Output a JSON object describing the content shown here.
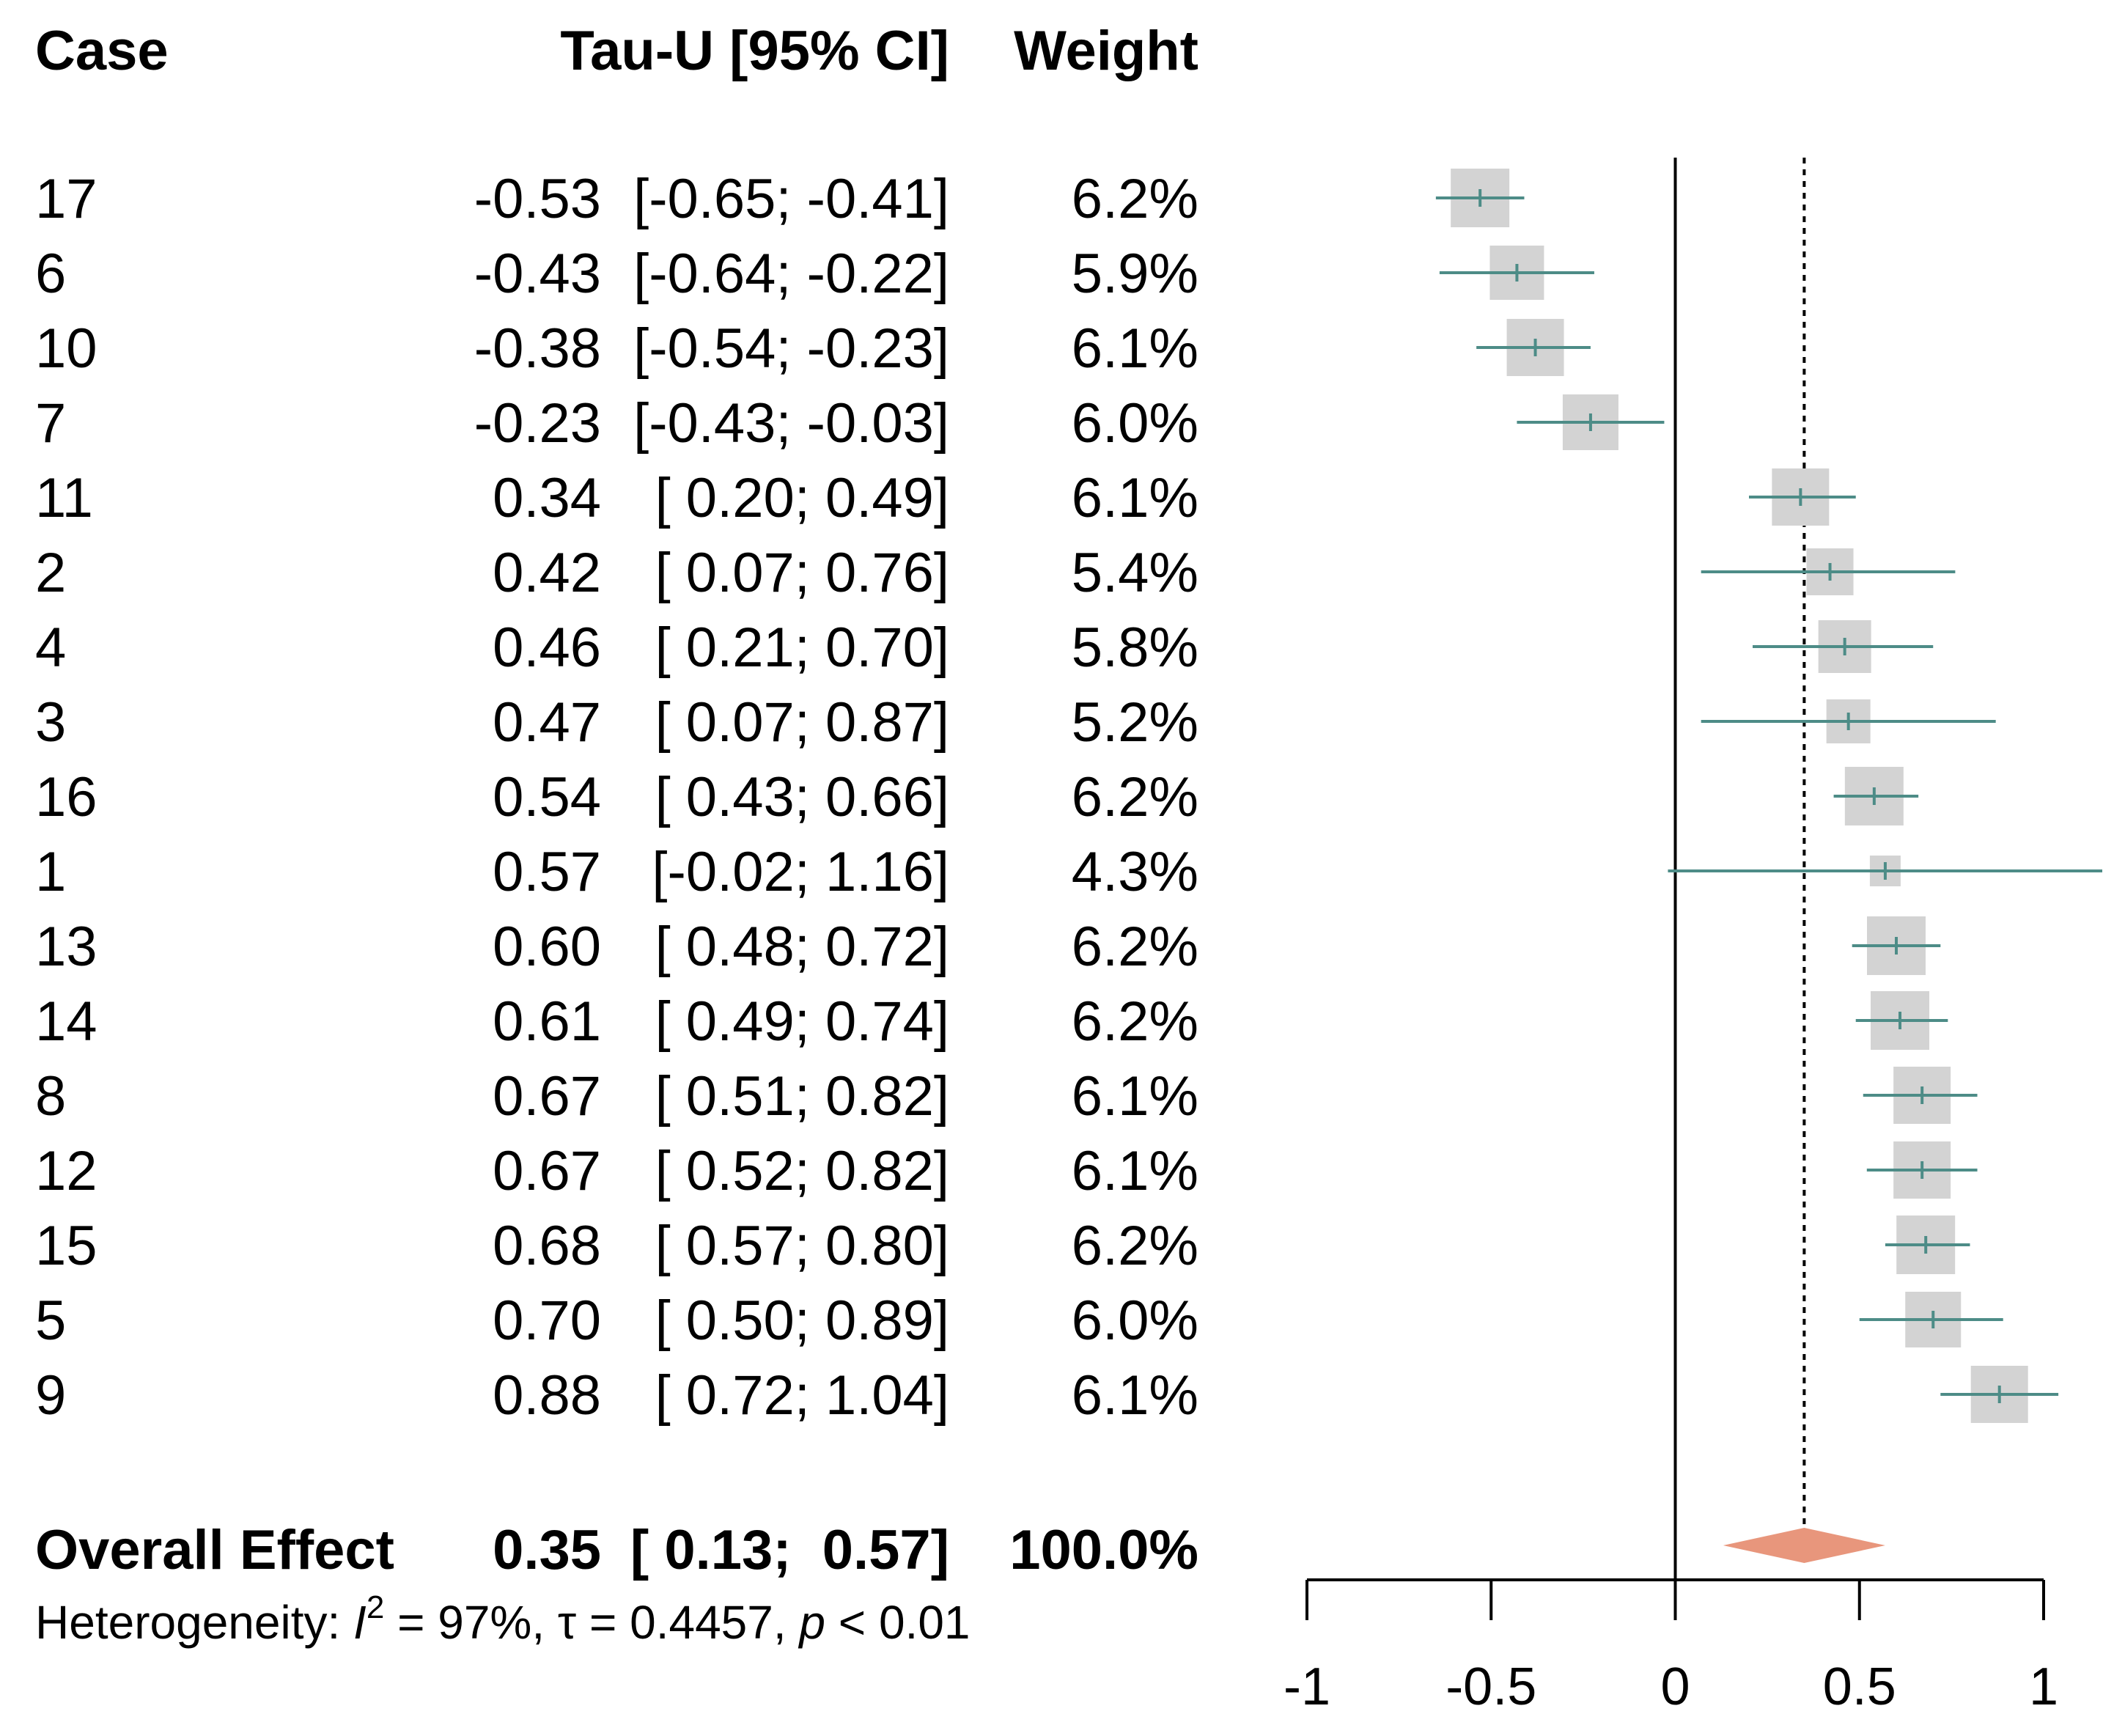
{
  "headers": {
    "case": "Case",
    "effect": "Tau-U [95% CI]",
    "weight": "Weight"
  },
  "rows": [
    {
      "case": "17",
      "est": -0.53,
      "lo": -0.65,
      "hi": -0.41,
      "est_text": "-0.53",
      "ci_text": "[-0.65; -0.41]",
      "weight": "6.2%"
    },
    {
      "case": "6",
      "est": -0.43,
      "lo": -0.64,
      "hi": -0.22,
      "est_text": "-0.43",
      "ci_text": "[-0.64; -0.22]",
      "weight": "5.9%"
    },
    {
      "case": "10",
      "est": -0.38,
      "lo": -0.54,
      "hi": -0.23,
      "est_text": "-0.38",
      "ci_text": "[-0.54; -0.23]",
      "weight": "6.1%"
    },
    {
      "case": "7",
      "est": -0.23,
      "lo": -0.43,
      "hi": -0.03,
      "est_text": "-0.23",
      "ci_text": "[-0.43; -0.03]",
      "weight": "6.0%"
    },
    {
      "case": "11",
      "est": 0.34,
      "lo": 0.2,
      "hi": 0.49,
      "est_text": "0.34",
      "ci_text": "[ 0.20;  0.49]",
      "weight": "6.1%"
    },
    {
      "case": "2",
      "est": 0.42,
      "lo": 0.07,
      "hi": 0.76,
      "est_text": "0.42",
      "ci_text": "[ 0.07;  0.76]",
      "weight": "5.4%"
    },
    {
      "case": "4",
      "est": 0.46,
      "lo": 0.21,
      "hi": 0.7,
      "est_text": "0.46",
      "ci_text": "[ 0.21;  0.70]",
      "weight": "5.8%"
    },
    {
      "case": "3",
      "est": 0.47,
      "lo": 0.07,
      "hi": 0.87,
      "est_text": "0.47",
      "ci_text": "[ 0.07;  0.87]",
      "weight": "5.2%"
    },
    {
      "case": "16",
      "est": 0.54,
      "lo": 0.43,
      "hi": 0.66,
      "est_text": "0.54",
      "ci_text": "[ 0.43;  0.66]",
      "weight": "6.2%"
    },
    {
      "case": "1",
      "est": 0.57,
      "lo": -0.02,
      "hi": 1.16,
      "est_text": "0.57",
      "ci_text": "[-0.02;  1.16]",
      "weight": "4.3%"
    },
    {
      "case": "13",
      "est": 0.6,
      "lo": 0.48,
      "hi": 0.72,
      "est_text": "0.60",
      "ci_text": "[ 0.48;  0.72]",
      "weight": "6.2%"
    },
    {
      "case": "14",
      "est": 0.61,
      "lo": 0.49,
      "hi": 0.74,
      "est_text": "0.61",
      "ci_text": "[ 0.49;  0.74]",
      "weight": "6.2%"
    },
    {
      "case": "8",
      "est": 0.67,
      "lo": 0.51,
      "hi": 0.82,
      "est_text": "0.67",
      "ci_text": "[ 0.51;  0.82]",
      "weight": "6.1%"
    },
    {
      "case": "12",
      "est": 0.67,
      "lo": 0.52,
      "hi": 0.82,
      "est_text": "0.67",
      "ci_text": "[ 0.52;  0.82]",
      "weight": "6.1%"
    },
    {
      "case": "15",
      "est": 0.68,
      "lo": 0.57,
      "hi": 0.8,
      "est_text": "0.68",
      "ci_text": "[ 0.57;  0.80]",
      "weight": "6.2%"
    },
    {
      "case": "5",
      "est": 0.7,
      "lo": 0.5,
      "hi": 0.89,
      "est_text": "0.70",
      "ci_text": "[ 0.50;  0.89]",
      "weight": "6.0%"
    },
    {
      "case": "9",
      "est": 0.88,
      "lo": 0.72,
      "hi": 1.04,
      "est_text": "0.88",
      "ci_text": "[ 0.72;  1.04]",
      "weight": "6.1%"
    }
  ],
  "overall": {
    "label": "Overall Effect",
    "est": 0.35,
    "lo": 0.13,
    "hi": 0.57,
    "est_text": "0.35",
    "ci_text": "[ 0.13;  0.57]",
    "weight": "100.0%"
  },
  "heterogeneity": {
    "prefix": "Heterogeneity: ",
    "i_symbol": "I",
    "i_sup": "2",
    "i_value": " = 97%, ",
    "tau_text": "τ = 0.4457, ",
    "p_symbol": "p",
    "p_text": " < 0.01"
  },
  "chart_data": {
    "type": "forest",
    "xlim": [
      -1,
      1
    ],
    "x_ticks": [
      -1,
      -0.5,
      0,
      0.5,
      1
    ],
    "x_tick_labels": [
      "-1",
      "-0.5",
      "0",
      "0.5",
      "1"
    ],
    "reference_line": 0,
    "summary_line": 0.35,
    "colors": {
      "box": "#d3d3d3",
      "ci": "#4d8c87",
      "diamond": "#e8967c",
      "axis": "#000000"
    }
  }
}
